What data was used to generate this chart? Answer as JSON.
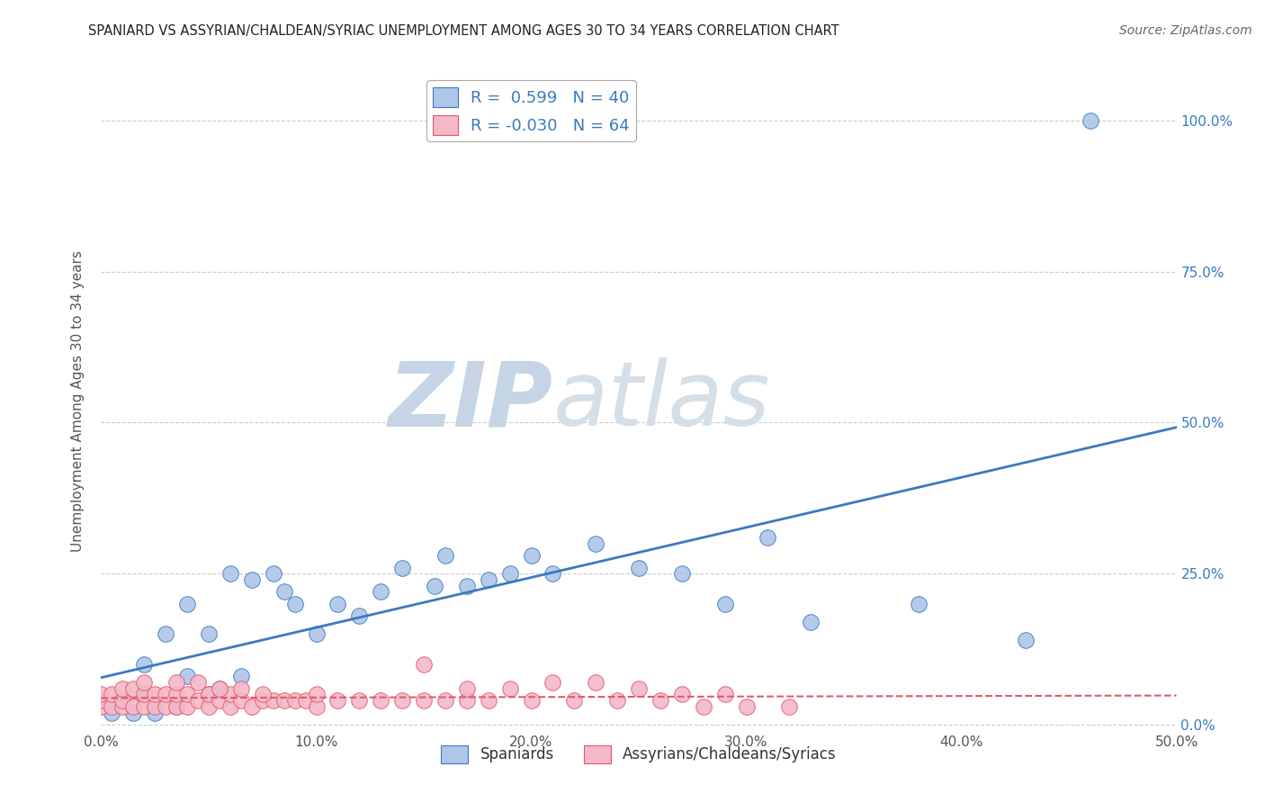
{
  "title": "SPANIARD VS ASSYRIAN/CHALDEAN/SYRIAC UNEMPLOYMENT AMONG AGES 30 TO 34 YEARS CORRELATION CHART",
  "source": "Source: ZipAtlas.com",
  "ylabel": "Unemployment Among Ages 30 to 34 years",
  "xlim": [
    0.0,
    0.5
  ],
  "ylim": [
    -0.01,
    1.08
  ],
  "xticks": [
    0.0,
    0.1,
    0.2,
    0.3,
    0.4,
    0.5
  ],
  "yticks": [
    0.0,
    0.25,
    0.5,
    0.75,
    1.0
  ],
  "ytick_labels": [
    "0.0%",
    "25.0%",
    "50.0%",
    "75.0%",
    "100.0%"
  ],
  "xtick_labels": [
    "0.0%",
    "10.0%",
    "20.0%",
    "30.0%",
    "40.0%",
    "50.0%"
  ],
  "r_spaniard": 0.599,
  "n_spaniard": 40,
  "r_assyrian": -0.03,
  "n_assyrian": 64,
  "spaniard_color": "#aec6e8",
  "assyrian_color": "#f4b8c8",
  "trend_spaniard_color": "#3a7abf",
  "trend_assyrian_color": "#e05a6a",
  "watermark_zip": "ZIP",
  "watermark_atlas": "atlas",
  "watermark_color": "#ccd9e8",
  "spaniard_x": [
    0.005,
    0.01,
    0.015,
    0.02,
    0.02,
    0.025,
    0.03,
    0.035,
    0.04,
    0.04,
    0.05,
    0.05,
    0.055,
    0.06,
    0.065,
    0.07,
    0.08,
    0.085,
    0.09,
    0.1,
    0.11,
    0.12,
    0.13,
    0.14,
    0.155,
    0.16,
    0.17,
    0.18,
    0.19,
    0.2,
    0.21,
    0.23,
    0.25,
    0.27,
    0.29,
    0.31,
    0.33,
    0.38,
    0.43,
    0.46
  ],
  "spaniard_y": [
    0.02,
    0.04,
    0.02,
    0.05,
    0.1,
    0.02,
    0.15,
    0.03,
    0.08,
    0.2,
    0.05,
    0.15,
    0.06,
    0.25,
    0.08,
    0.24,
    0.25,
    0.22,
    0.2,
    0.15,
    0.2,
    0.18,
    0.22,
    0.26,
    0.23,
    0.28,
    0.23,
    0.24,
    0.25,
    0.28,
    0.25,
    0.3,
    0.26,
    0.25,
    0.2,
    0.31,
    0.17,
    0.2,
    0.14,
    1.0
  ],
  "assyrian_x": [
    0.0,
    0.0,
    0.0,
    0.005,
    0.005,
    0.01,
    0.01,
    0.01,
    0.015,
    0.015,
    0.02,
    0.02,
    0.02,
    0.025,
    0.025,
    0.03,
    0.03,
    0.035,
    0.035,
    0.04,
    0.04,
    0.045,
    0.05,
    0.05,
    0.055,
    0.06,
    0.06,
    0.065,
    0.07,
    0.075,
    0.08,
    0.085,
    0.09,
    0.095,
    0.1,
    0.1,
    0.11,
    0.12,
    0.13,
    0.14,
    0.15,
    0.16,
    0.17,
    0.18,
    0.2,
    0.22,
    0.24,
    0.26,
    0.28,
    0.3,
    0.32,
    0.15,
    0.17,
    0.19,
    0.21,
    0.23,
    0.25,
    0.27,
    0.29,
    0.035,
    0.045,
    0.055,
    0.065,
    0.075
  ],
  "assyrian_y": [
    0.03,
    0.04,
    0.05,
    0.03,
    0.05,
    0.03,
    0.04,
    0.06,
    0.03,
    0.06,
    0.03,
    0.05,
    0.07,
    0.03,
    0.05,
    0.03,
    0.05,
    0.03,
    0.05,
    0.03,
    0.05,
    0.04,
    0.03,
    0.05,
    0.04,
    0.03,
    0.05,
    0.04,
    0.03,
    0.04,
    0.04,
    0.04,
    0.04,
    0.04,
    0.03,
    0.05,
    0.04,
    0.04,
    0.04,
    0.04,
    0.04,
    0.04,
    0.04,
    0.04,
    0.04,
    0.04,
    0.04,
    0.04,
    0.03,
    0.03,
    0.03,
    0.1,
    0.06,
    0.06,
    0.07,
    0.07,
    0.06,
    0.05,
    0.05,
    0.07,
    0.07,
    0.06,
    0.06,
    0.05
  ]
}
